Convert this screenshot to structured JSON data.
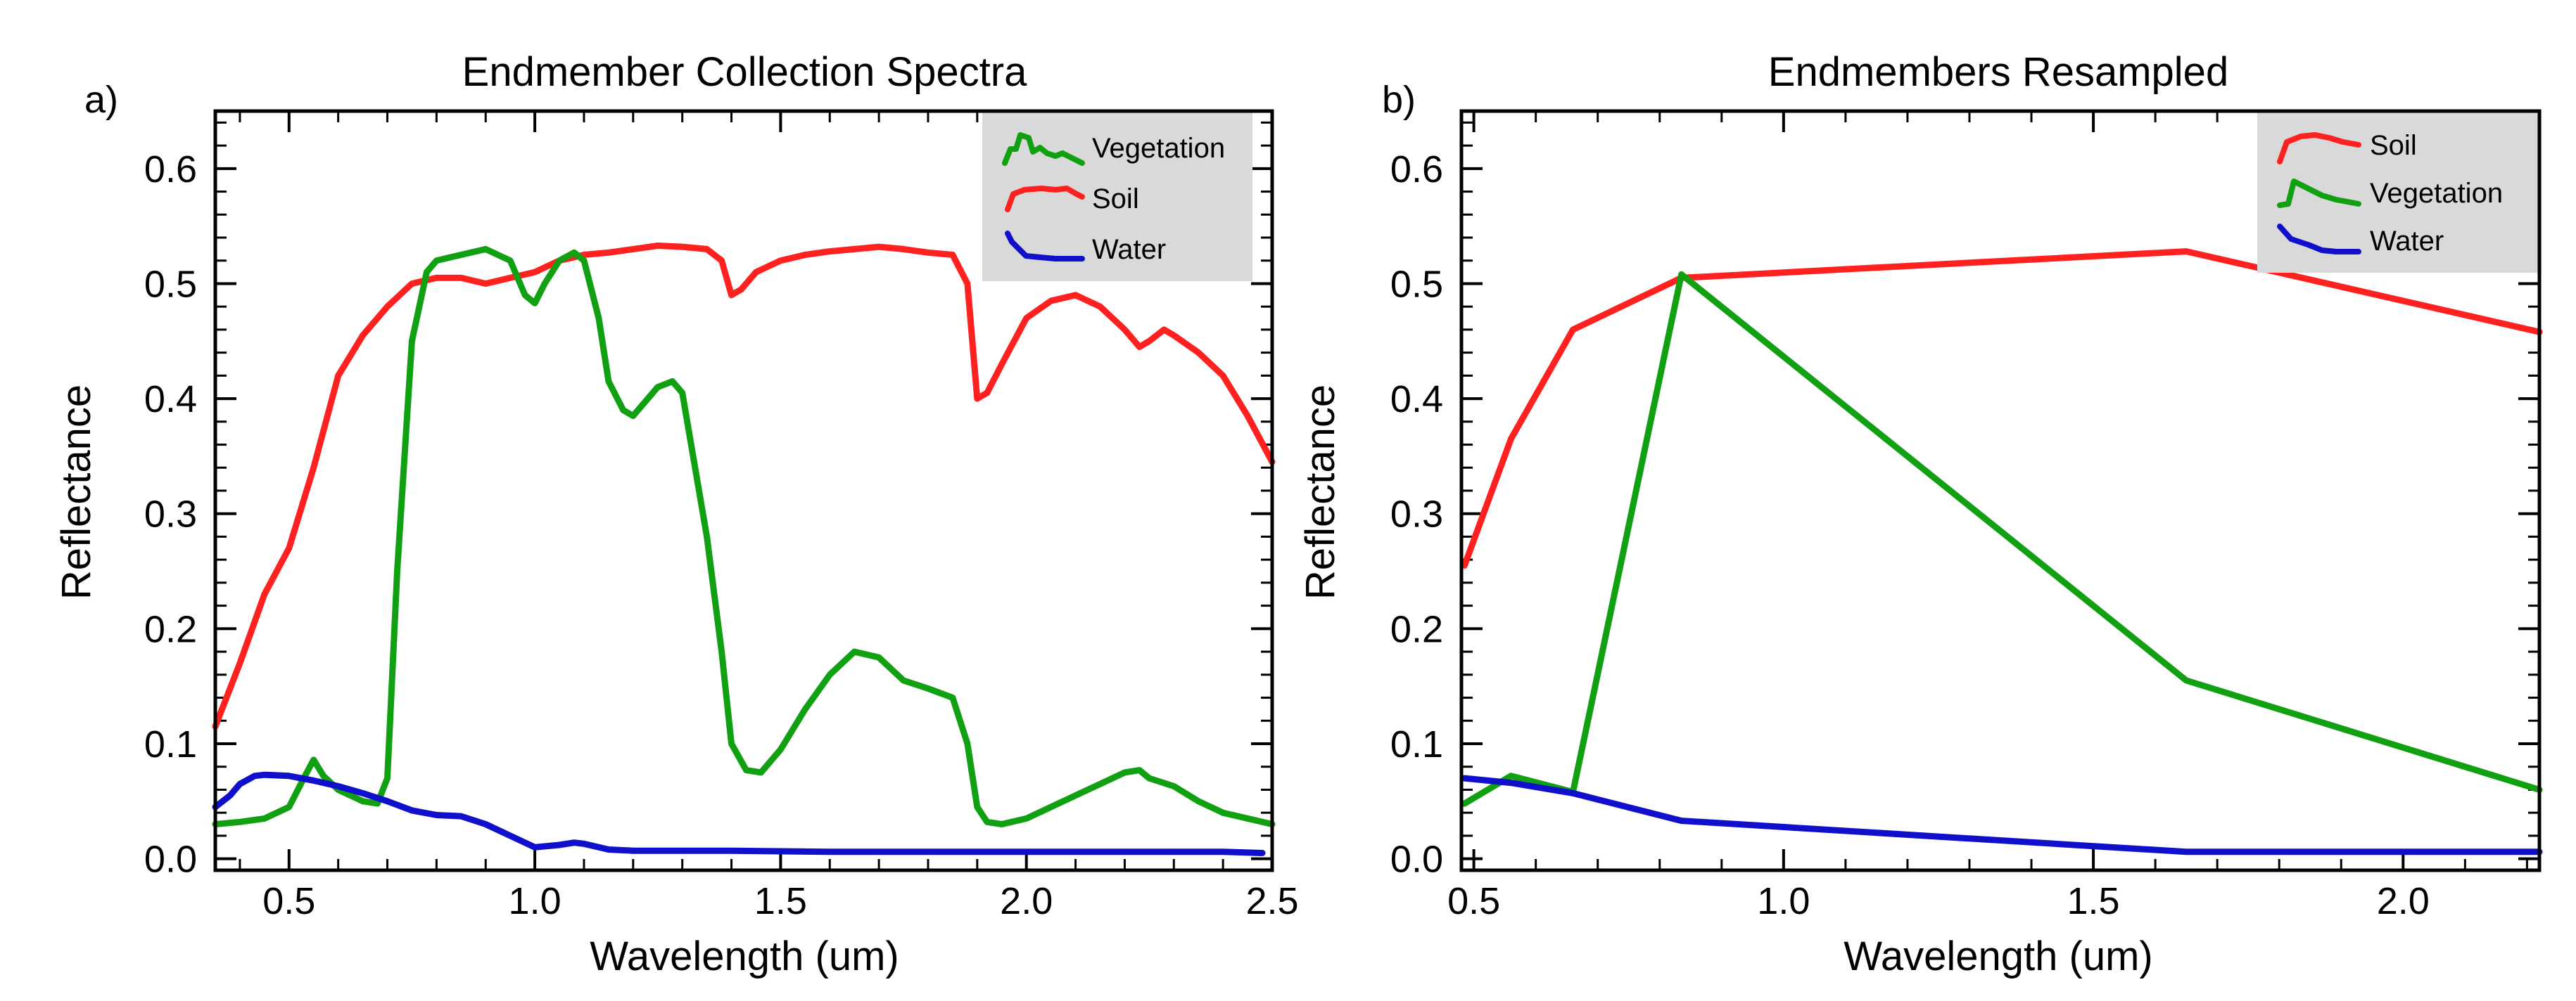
{
  "colors": {
    "soil": "#ff2020",
    "vegetation": "#11a011",
    "water": "#1010cc"
  },
  "chart_data": [
    {
      "type": "line",
      "panel_label": "a)",
      "title": "Endmember Collection Spectra",
      "xlabel": "Wavelength (um)",
      "ylabel": "Reflectance",
      "xlim": [
        0.35,
        2.5
      ],
      "ylim": [
        -0.01,
        0.65
      ],
      "xticks": [
        0.5,
        1.0,
        1.5,
        2.0,
        2.5
      ],
      "xtick_labels": [
        "0.5",
        "1.0",
        "1.5",
        "2.0",
        "2.5"
      ],
      "yticks": [
        0.0,
        0.1,
        0.2,
        0.3,
        0.4,
        0.5,
        0.6
      ],
      "ytick_labels": [
        "0.0",
        "0.1",
        "0.2",
        "0.3",
        "0.4",
        "0.5",
        "0.6"
      ],
      "legend_position": "top-right",
      "legend_order": [
        "vegetation",
        "soil",
        "water"
      ],
      "series": [
        {
          "key": "soil",
          "name": "Soil",
          "x": [
            0.35,
            0.4,
            0.45,
            0.5,
            0.55,
            0.6,
            0.65,
            0.7,
            0.75,
            0.8,
            0.85,
            0.9,
            0.95,
            1.0,
            1.05,
            1.1,
            1.15,
            1.2,
            1.25,
            1.3,
            1.35,
            1.38,
            1.4,
            1.42,
            1.45,
            1.5,
            1.55,
            1.6,
            1.65,
            1.7,
            1.75,
            1.8,
            1.85,
            1.88,
            1.9,
            1.92,
            1.95,
            2.0,
            2.05,
            2.1,
            2.15,
            2.2,
            2.23,
            2.25,
            2.28,
            2.3,
            2.35,
            2.4,
            2.45,
            2.5
          ],
          "y": [
            0.115,
            0.17,
            0.23,
            0.27,
            0.34,
            0.42,
            0.455,
            0.48,
            0.5,
            0.505,
            0.505,
            0.5,
            0.505,
            0.51,
            0.52,
            0.525,
            0.527,
            0.53,
            0.533,
            0.532,
            0.53,
            0.52,
            0.49,
            0.495,
            0.51,
            0.52,
            0.525,
            0.528,
            0.53,
            0.532,
            0.53,
            0.527,
            0.525,
            0.5,
            0.4,
            0.405,
            0.43,
            0.47,
            0.485,
            0.49,
            0.48,
            0.46,
            0.445,
            0.45,
            0.46,
            0.455,
            0.44,
            0.42,
            0.385,
            0.345
          ]
        },
        {
          "key": "vegetation",
          "name": "Vegetation",
          "x": [
            0.35,
            0.4,
            0.45,
            0.5,
            0.53,
            0.55,
            0.57,
            0.6,
            0.65,
            0.68,
            0.7,
            0.72,
            0.75,
            0.78,
            0.8,
            0.85,
            0.9,
            0.95,
            0.98,
            1.0,
            1.02,
            1.05,
            1.08,
            1.1,
            1.13,
            1.15,
            1.18,
            1.2,
            1.25,
            1.28,
            1.3,
            1.35,
            1.38,
            1.4,
            1.43,
            1.46,
            1.5,
            1.55,
            1.6,
            1.65,
            1.7,
            1.75,
            1.8,
            1.85,
            1.88,
            1.9,
            1.92,
            1.95,
            2.0,
            2.05,
            2.1,
            2.15,
            2.2,
            2.23,
            2.25,
            2.3,
            2.35,
            2.4,
            2.45,
            2.5
          ],
          "y": [
            0.03,
            0.032,
            0.035,
            0.045,
            0.07,
            0.086,
            0.072,
            0.06,
            0.05,
            0.048,
            0.07,
            0.25,
            0.45,
            0.51,
            0.52,
            0.525,
            0.53,
            0.52,
            0.49,
            0.483,
            0.5,
            0.52,
            0.527,
            0.52,
            0.47,
            0.415,
            0.39,
            0.385,
            0.41,
            0.415,
            0.405,
            0.28,
            0.18,
            0.1,
            0.077,
            0.075,
            0.095,
            0.13,
            0.16,
            0.18,
            0.175,
            0.155,
            0.148,
            0.14,
            0.1,
            0.045,
            0.032,
            0.03,
            0.035,
            0.045,
            0.055,
            0.065,
            0.075,
            0.077,
            0.07,
            0.063,
            0.05,
            0.04,
            0.035,
            0.03
          ]
        },
        {
          "key": "water",
          "name": "Water",
          "x": [
            0.35,
            0.38,
            0.4,
            0.43,
            0.45,
            0.5,
            0.55,
            0.6,
            0.65,
            0.7,
            0.75,
            0.8,
            0.85,
            0.9,
            0.95,
            1.0,
            1.05,
            1.08,
            1.1,
            1.15,
            1.2,
            1.4,
            1.6,
            1.8,
            2.0,
            2.2,
            2.4,
            2.48
          ],
          "y": [
            0.045,
            0.055,
            0.065,
            0.072,
            0.073,
            0.072,
            0.068,
            0.063,
            0.057,
            0.05,
            0.042,
            0.038,
            0.037,
            0.03,
            0.02,
            0.01,
            0.012,
            0.014,
            0.013,
            0.008,
            0.007,
            0.007,
            0.006,
            0.006,
            0.006,
            0.006,
            0.006,
            0.005
          ]
        }
      ]
    },
    {
      "type": "line",
      "panel_label": "b)",
      "title": "Endmembers Resampled",
      "xlabel": "Wavelength (um)",
      "ylabel": "Reflectance",
      "xlim": [
        0.48,
        2.22
      ],
      "ylim": [
        -0.01,
        0.65
      ],
      "xticks": [
        0.5,
        1.0,
        1.5,
        2.0
      ],
      "xtick_labels": [
        "0.5",
        "1.0",
        "1.5",
        "2.0"
      ],
      "yticks": [
        0.0,
        0.1,
        0.2,
        0.3,
        0.4,
        0.5,
        0.6
      ],
      "ytick_labels": [
        "0.0",
        "0.1",
        "0.2",
        "0.3",
        "0.4",
        "0.5",
        "0.6"
      ],
      "legend_position": "top-right",
      "legend_order": [
        "soil",
        "vegetation",
        "water"
      ],
      "series": [
        {
          "key": "soil",
          "name": "Soil",
          "x": [
            0.485,
            0.56,
            0.66,
            0.835,
            1.65,
            2.22
          ],
          "y": [
            0.255,
            0.365,
            0.46,
            0.505,
            0.528,
            0.458
          ]
        },
        {
          "key": "vegetation",
          "name": "Vegetation",
          "x": [
            0.485,
            0.56,
            0.66,
            0.835,
            1.65,
            2.22
          ],
          "y": [
            0.048,
            0.072,
            0.058,
            0.508,
            0.155,
            0.06
          ]
        },
        {
          "key": "water",
          "name": "Water",
          "x": [
            0.485,
            0.56,
            0.66,
            0.835,
            1.65,
            2.22
          ],
          "y": [
            0.07,
            0.066,
            0.057,
            0.033,
            0.006,
            0.006
          ]
        }
      ]
    }
  ]
}
